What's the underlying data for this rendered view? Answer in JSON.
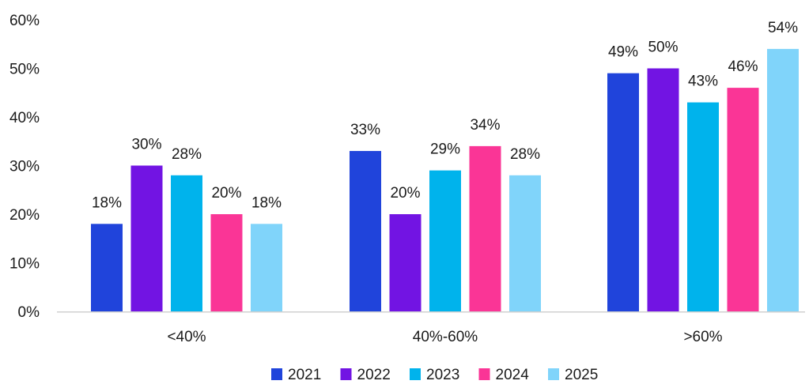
{
  "chart_data": {
    "type": "bar",
    "title": "",
    "xlabel": "",
    "ylabel": "",
    "ylim": [
      0,
      60
    ],
    "y_ticks": [
      "0%",
      "10%",
      "20%",
      "30%",
      "40%",
      "50%",
      "60%"
    ],
    "y_tick_values": [
      0,
      10,
      20,
      30,
      40,
      50,
      60
    ],
    "grid": false,
    "legend_position": "bottom",
    "categories": [
      "<40%",
      "40%-60%",
      ">60%"
    ],
    "series": [
      {
        "name": "2021",
        "color": "#2044DB",
        "values": [
          18,
          33,
          49
        ],
        "labels": [
          "18%",
          "33%",
          "49%"
        ]
      },
      {
        "name": "2022",
        "color": "#7214E3",
        "values": [
          30,
          20,
          50
        ],
        "labels": [
          "30%",
          "20%",
          "50%"
        ]
      },
      {
        "name": "2023",
        "color": "#00B3EC",
        "values": [
          28,
          29,
          43
        ],
        "labels": [
          "28%",
          "29%",
          "43%"
        ]
      },
      {
        "name": "2024",
        "color": "#FA3596",
        "values": [
          20,
          34,
          46
        ],
        "labels": [
          "20%",
          "34%",
          "46%"
        ]
      },
      {
        "name": "2025",
        "color": "#80D4FA",
        "values": [
          18,
          28,
          54
        ],
        "labels": [
          "18%",
          "28%",
          "54%"
        ]
      }
    ]
  }
}
